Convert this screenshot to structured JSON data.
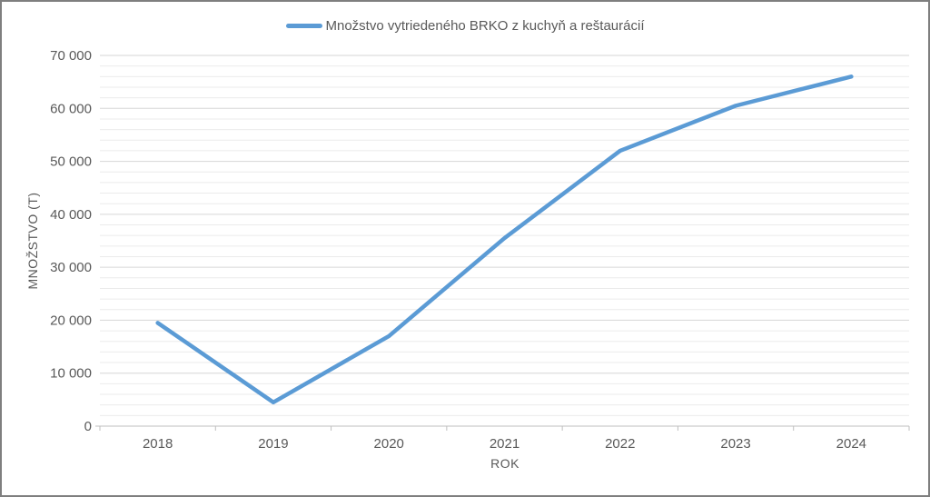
{
  "window": {
    "background": "#ffffff",
    "border_color": "#7f7f7f"
  },
  "chart_data": {
    "type": "line",
    "title": "",
    "legend": {
      "position": "top",
      "label": "Množstvo vytriedeného BRKO z kuchyň a reštaurácií"
    },
    "categories": [
      "2018",
      "2019",
      "2020",
      "2021",
      "2022",
      "2023",
      "2024"
    ],
    "series": [
      {
        "name": "Množstvo vytriedeného BRKO z kuchyň a reštaurácií",
        "values": [
          19500,
          4500,
          17000,
          35500,
          52000,
          60500,
          66000
        ],
        "color": "#5B9BD5",
        "line_width": 4.5
      }
    ],
    "xlabel": "ROK",
    "ylabel": "MNOŽSTVO (T)",
    "ylim": [
      0,
      70000
    ],
    "ytick_interval": 10000,
    "minor_tick_interval": 2000,
    "ytick_labels": [
      "0",
      "10 000",
      "20 000",
      "30 000",
      "40 000",
      "50 000",
      "60 000",
      "70 000"
    ],
    "grid": {
      "major_on": true,
      "minor_on": true,
      "major_color": "#D6D6D6",
      "minor_color": "#EBEBEB",
      "axis_color": "#BFBFBF"
    },
    "text_color": "#595959"
  }
}
